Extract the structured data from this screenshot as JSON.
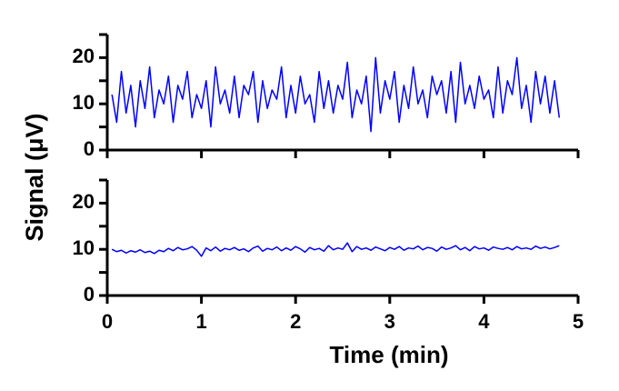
{
  "chart_data": [
    {
      "type": "line",
      "ylabel": "Signal (μV)",
      "x": [
        0.05,
        0.1,
        0.15,
        0.2,
        0.25,
        0.3,
        0.35,
        0.4,
        0.45,
        0.5,
        0.55,
        0.6,
        0.65,
        0.7,
        0.75,
        0.8,
        0.85,
        0.9,
        0.95,
        1,
        1.05,
        1.1,
        1.15,
        1.2,
        1.25,
        1.3,
        1.35,
        1.4,
        1.45,
        1.5,
        1.55,
        1.6,
        1.65,
        1.7,
        1.75,
        1.8,
        1.85,
        1.9,
        1.95,
        2,
        2.05,
        2.1,
        2.15,
        2.2,
        2.25,
        2.3,
        2.35,
        2.4,
        2.45,
        2.5,
        2.55,
        2.6,
        2.65,
        2.7,
        2.75,
        2.8,
        2.85,
        2.9,
        2.95,
        3,
        3.05,
        3.1,
        3.15,
        3.2,
        3.25,
        3.3,
        3.35,
        3.4,
        3.45,
        3.5,
        3.55,
        3.6,
        3.65,
        3.7,
        3.75,
        3.8,
        3.85,
        3.9,
        3.95,
        4,
        4.05,
        4.1,
        4.15,
        4.2,
        4.25,
        4.3,
        4.35,
        4.4,
        4.45,
        4.5,
        4.55,
        4.6,
        4.65,
        4.7,
        4.75,
        4.8
      ],
      "series": [
        {
          "color": "#0000ff",
          "values": [
            12,
            6,
            17,
            8,
            14,
            5,
            15,
            9,
            18,
            7,
            13,
            10,
            16,
            6,
            14,
            11,
            17,
            7,
            12,
            9,
            15,
            5,
            18,
            10,
            13,
            8,
            16,
            7,
            14,
            12,
            17,
            6,
            15,
            9,
            13,
            11,
            18,
            7,
            14,
            8,
            16,
            10,
            12,
            6,
            17,
            9,
            15,
            8,
            14,
            11,
            19,
            7,
            13,
            10,
            16,
            4,
            20,
            8,
            15,
            11,
            17,
            6,
            14,
            9,
            18,
            10,
            13,
            7,
            16,
            12,
            15,
            8,
            17,
            6,
            19,
            10,
            14,
            9,
            16,
            11,
            13,
            7,
            18,
            8,
            15,
            12,
            20,
            9,
            14,
            6,
            17,
            10,
            16,
            8,
            15,
            7
          ]
        }
      ],
      "xlim": [
        0,
        5
      ],
      "xticks": [
        0,
        1,
        2,
        3,
        4,
        5
      ],
      "xtick_labels": false,
      "ylim": [
        0,
        25
      ],
      "yticks": [
        0,
        10,
        20
      ],
      "yticks_minor": [
        5,
        15,
        25
      ]
    },
    {
      "type": "line",
      "xlabel": "Time (min)",
      "x": [
        0.05,
        0.1,
        0.15,
        0.2,
        0.25,
        0.3,
        0.35,
        0.4,
        0.45,
        0.5,
        0.55,
        0.6,
        0.65,
        0.7,
        0.75,
        0.8,
        0.85,
        0.9,
        0.95,
        1,
        1.05,
        1.1,
        1.15,
        1.2,
        1.25,
        1.3,
        1.35,
        1.4,
        1.45,
        1.5,
        1.55,
        1.6,
        1.65,
        1.7,
        1.75,
        1.8,
        1.85,
        1.9,
        1.95,
        2,
        2.05,
        2.1,
        2.15,
        2.2,
        2.25,
        2.3,
        2.35,
        2.4,
        2.45,
        2.5,
        2.55,
        2.6,
        2.65,
        2.7,
        2.75,
        2.8,
        2.85,
        2.9,
        2.95,
        3,
        3.05,
        3.1,
        3.15,
        3.2,
        3.25,
        3.3,
        3.35,
        3.4,
        3.45,
        3.5,
        3.55,
        3.6,
        3.65,
        3.7,
        3.75,
        3.8,
        3.85,
        3.9,
        3.95,
        4,
        4.05,
        4.1,
        4.15,
        4.2,
        4.25,
        4.3,
        4.35,
        4.4,
        4.45,
        4.5,
        4.55,
        4.6,
        4.65,
        4.7,
        4.75,
        4.8
      ],
      "series": [
        {
          "color": "#0000ff",
          "values": [
            10,
            9.5,
            9.8,
            9.2,
            9.7,
            9.4,
            9.9,
            9.3,
            9.6,
            9.1,
            9.8,
            9.5,
            10.2,
            9.7,
            10.4,
            9.9,
            10.1,
            10.6,
            9.8,
            8.5,
            10.3,
            9.7,
            10.5,
            9.6,
            10.2,
            9.9,
            10.4,
            9.8,
            10.1,
            9.5,
            10.3,
            10.7,
            9.6,
            10.2,
            9.9,
            10.5,
            9.7,
            10.3,
            9.8,
            10.6,
            10.1,
            9.4,
            10.4,
            9.9,
            10.2,
            9.6,
            10.8,
            9.9,
            10.3,
            10.0,
            11.4,
            9.5,
            10.6,
            10.0,
            10.3,
            9.8,
            10.5,
            10.1,
            9.7,
            10.4,
            10.0,
            10.6,
            9.8,
            10.3,
            10.1,
            10.7,
            9.9,
            10.4,
            10.2,
            9.6,
            10.5,
            10.0,
            10.3,
            10.8,
            9.9,
            10.4,
            9.7,
            10.6,
            10.1,
            10.3,
            9.8,
            10.5,
            10.2,
            10.0,
            10.4,
            9.9,
            10.6,
            10.1,
            10.3,
            10.0,
            10.7,
            10.2,
            10.5,
            10.1,
            10.4,
            10.8
          ]
        }
      ],
      "xlim": [
        0,
        5
      ],
      "xticks": [
        0,
        1,
        2,
        3,
        4,
        5
      ],
      "xtick_labels": true,
      "ylim": [
        0,
        25
      ],
      "yticks": [
        0,
        10,
        20
      ],
      "yticks_minor": [
        5,
        15,
        25
      ]
    }
  ]
}
